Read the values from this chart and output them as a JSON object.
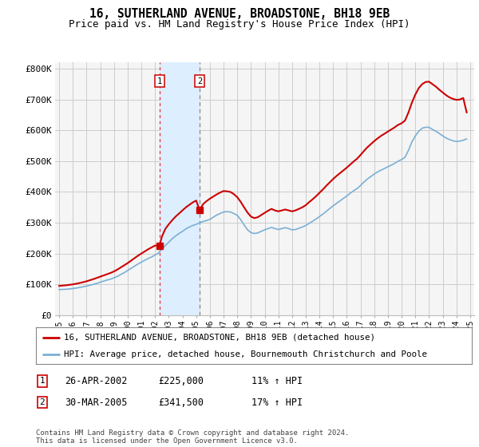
{
  "title": "16, SUTHERLAND AVENUE, BROADSTONE, BH18 9EB",
  "subtitle": "Price paid vs. HM Land Registry's House Price Index (HPI)",
  "title_fontsize": 10.5,
  "subtitle_fontsize": 9,
  "ylabel_ticks": [
    "£0",
    "£100K",
    "£200K",
    "£300K",
    "£400K",
    "£500K",
    "£600K",
    "£700K",
    "£800K"
  ],
  "ytick_values": [
    0,
    100000,
    200000,
    300000,
    400000,
    500000,
    600000,
    700000,
    800000
  ],
  "ylim": [
    0,
    820000
  ],
  "xlim_start": 1994.7,
  "xlim_end": 2025.3,
  "xticks": [
    1995,
    1996,
    1997,
    1998,
    1999,
    2000,
    2001,
    2002,
    2003,
    2004,
    2005,
    2006,
    2007,
    2008,
    2009,
    2010,
    2011,
    2012,
    2013,
    2014,
    2015,
    2016,
    2017,
    2018,
    2019,
    2020,
    2021,
    2022,
    2023,
    2024,
    2025
  ],
  "bg_color": "#ffffff",
  "plot_bg_color": "#f5f5f5",
  "grid_color": "#cccccc",
  "red_line_color": "#cc0000",
  "blue_line_color": "#7ab0d4",
  "highlight_box_color": "#ddeeff",
  "transaction1_x": 2002.32,
  "transaction1_y": 225000,
  "transaction1_label": "1",
  "transaction2_x": 2005.25,
  "transaction2_y": 341500,
  "transaction2_label": "2",
  "vline1_x": 2002.32,
  "vline2_x": 2005.25,
  "legend_line1": "16, SUTHERLAND AVENUE, BROADSTONE, BH18 9EB (detached house)",
  "legend_line2": "HPI: Average price, detached house, Bournemouth Christchurch and Poole",
  "table_rows": [
    {
      "num": "1",
      "date": "26-APR-2002",
      "price": "£225,000",
      "hpi": "11% ↑ HPI"
    },
    {
      "num": "2",
      "date": "30-MAR-2005",
      "price": "£341,500",
      "hpi": "17% ↑ HPI"
    }
  ],
  "footnote": "Contains HM Land Registry data © Crown copyright and database right 2024.\nThis data is licensed under the Open Government Licence v3.0.",
  "hpi_years": [
    1995.0,
    1995.25,
    1995.5,
    1995.75,
    1996.0,
    1996.25,
    1996.5,
    1996.75,
    1997.0,
    1997.25,
    1997.5,
    1997.75,
    1998.0,
    1998.25,
    1998.5,
    1998.75,
    1999.0,
    1999.25,
    1999.5,
    1999.75,
    2000.0,
    2000.25,
    2000.5,
    2000.75,
    2001.0,
    2001.25,
    2001.5,
    2001.75,
    2002.0,
    2002.25,
    2002.5,
    2002.75,
    2003.0,
    2003.25,
    2003.5,
    2003.75,
    2004.0,
    2004.25,
    2004.5,
    2004.75,
    2005.0,
    2005.25,
    2005.5,
    2005.75,
    2006.0,
    2006.25,
    2006.5,
    2006.75,
    2007.0,
    2007.25,
    2007.5,
    2007.75,
    2008.0,
    2008.25,
    2008.5,
    2008.75,
    2009.0,
    2009.25,
    2009.5,
    2009.75,
    2010.0,
    2010.25,
    2010.5,
    2010.75,
    2011.0,
    2011.25,
    2011.5,
    2011.75,
    2012.0,
    2012.25,
    2012.5,
    2012.75,
    2013.0,
    2013.25,
    2013.5,
    2013.75,
    2014.0,
    2014.25,
    2014.5,
    2014.75,
    2015.0,
    2015.25,
    2015.5,
    2015.75,
    2016.0,
    2016.25,
    2016.5,
    2016.75,
    2017.0,
    2017.25,
    2017.5,
    2017.75,
    2018.0,
    2018.25,
    2018.5,
    2018.75,
    2019.0,
    2019.25,
    2019.5,
    2019.75,
    2020.0,
    2020.25,
    2020.5,
    2020.75,
    2021.0,
    2021.25,
    2021.5,
    2021.75,
    2022.0,
    2022.25,
    2022.5,
    2022.75,
    2023.0,
    2023.25,
    2023.5,
    2023.75,
    2024.0,
    2024.25,
    2024.5,
    2024.75
  ],
  "hpi_values": [
    83000,
    83500,
    84000,
    85000,
    86500,
    88000,
    90000,
    92000,
    94500,
    97000,
    100000,
    103000,
    107000,
    110500,
    114000,
    117000,
    121000,
    126000,
    132000,
    138000,
    145000,
    152000,
    159000,
    166000,
    172000,
    178000,
    184000,
    189000,
    195000,
    202000,
    215000,
    226000,
    237000,
    248000,
    257000,
    265000,
    272000,
    280000,
    286000,
    291000,
    295000,
    300000,
    304000,
    307000,
    311000,
    318000,
    325000,
    330000,
    335000,
    336000,
    335000,
    330000,
    324000,
    310000,
    293000,
    277000,
    268000,
    265000,
    267000,
    272000,
    277000,
    281000,
    285000,
    281000,
    278000,
    281000,
    284000,
    281000,
    277000,
    278000,
    282000,
    286000,
    291000,
    298000,
    305000,
    312000,
    320000,
    328000,
    337000,
    346000,
    355000,
    363000,
    371000,
    379000,
    387000,
    396000,
    404000,
    411000,
    421000,
    432000,
    442000,
    450000,
    458000,
    465000,
    471000,
    476000,
    482000,
    487000,
    493000,
    500000,
    505000,
    513000,
    535000,
    562000,
    582000,
    597000,
    607000,
    610000,
    610000,
    603000,
    597000,
    590000,
    582000,
    575000,
    570000,
    566000,
    564000,
    565000,
    568000,
    572000
  ],
  "red_years": [
    1995.0,
    1995.25,
    1995.5,
    1995.75,
    1996.0,
    1996.25,
    1996.5,
    1996.75,
    1997.0,
    1997.25,
    1997.5,
    1997.75,
    1998.0,
    1998.25,
    1998.5,
    1998.75,
    1999.0,
    1999.25,
    1999.5,
    1999.75,
    2000.0,
    2000.25,
    2000.5,
    2000.75,
    2001.0,
    2001.25,
    2001.5,
    2001.75,
    2002.0,
    2002.32,
    2002.5,
    2002.75,
    2003.0,
    2003.25,
    2003.5,
    2003.75,
    2004.0,
    2004.25,
    2004.5,
    2004.75,
    2005.0,
    2005.25,
    2005.5,
    2005.75,
    2006.0,
    2006.25,
    2006.5,
    2006.75,
    2007.0,
    2007.25,
    2007.5,
    2007.75,
    2008.0,
    2008.25,
    2008.5,
    2008.75,
    2009.0,
    2009.25,
    2009.5,
    2009.75,
    2010.0,
    2010.25,
    2010.5,
    2010.75,
    2011.0,
    2011.25,
    2011.5,
    2011.75,
    2012.0,
    2012.25,
    2012.5,
    2012.75,
    2013.0,
    2013.25,
    2013.5,
    2013.75,
    2014.0,
    2014.25,
    2014.5,
    2014.75,
    2015.0,
    2015.25,
    2015.5,
    2015.75,
    2016.0,
    2016.25,
    2016.5,
    2016.75,
    2017.0,
    2017.25,
    2017.5,
    2017.75,
    2018.0,
    2018.25,
    2018.5,
    2018.75,
    2019.0,
    2019.25,
    2019.5,
    2019.75,
    2020.0,
    2020.25,
    2020.5,
    2020.75,
    2021.0,
    2021.25,
    2021.5,
    2021.75,
    2022.0,
    2022.25,
    2022.5,
    2022.75,
    2023.0,
    2023.25,
    2023.5,
    2023.75,
    2024.0,
    2024.25,
    2024.5,
    2024.75
  ],
  "red_values": [
    95000,
    96000,
    97000,
    98500,
    100000,
    102000,
    104500,
    107000,
    110000,
    113500,
    117000,
    121000,
    125000,
    129000,
    133000,
    137000,
    142000,
    148000,
    155000,
    162000,
    169000,
    177000,
    185000,
    193000,
    200000,
    207000,
    214000,
    220000,
    226000,
    225000,
    255000,
    280000,
    295000,
    308000,
    320000,
    330000,
    340000,
    350000,
    358000,
    366000,
    372000,
    341500,
    360000,
    370000,
    378000,
    385000,
    392000,
    398000,
    403000,
    402000,
    400000,
    393000,
    383000,
    368000,
    350000,
    333000,
    320000,
    315000,
    318000,
    325000,
    332000,
    339000,
    345000,
    340000,
    337000,
    340000,
    343000,
    340000,
    337000,
    340000,
    345000,
    350000,
    357000,
    367000,
    376000,
    386000,
    397000,
    408000,
    420000,
    431000,
    442000,
    452000,
    461000,
    470000,
    479000,
    489000,
    499000,
    508000,
    520000,
    533000,
    545000,
    555000,
    565000,
    574000,
    582000,
    589000,
    596000,
    603000,
    610000,
    618000,
    623000,
    632000,
    658000,
    690000,
    716000,
    737000,
    750000,
    757000,
    758000,
    750000,
    742000,
    732000,
    723000,
    714000,
    707000,
    702000,
    699000,
    700000,
    705000,
    658000
  ]
}
